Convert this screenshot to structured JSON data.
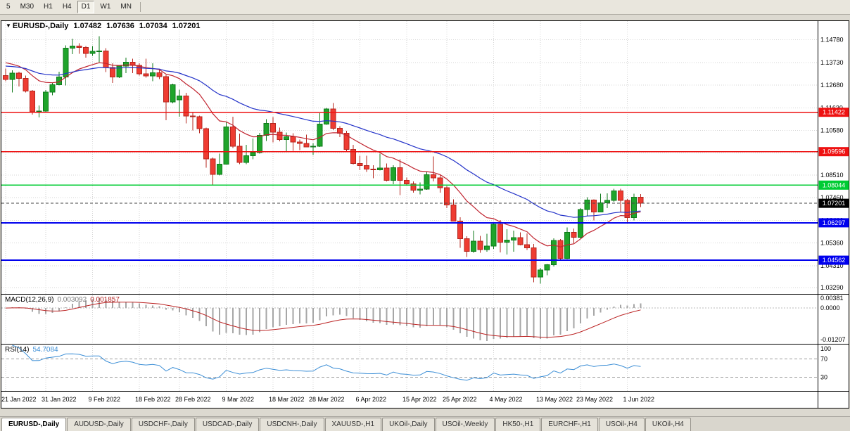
{
  "toolbar": {
    "timeframes": [
      {
        "label": "5",
        "active": false
      },
      {
        "label": "M30",
        "active": false
      },
      {
        "label": "H1",
        "active": false
      },
      {
        "label": "H4",
        "active": false
      },
      {
        "label": "D1",
        "active": true
      },
      {
        "label": "W1",
        "active": false
      },
      {
        "label": "MN",
        "active": false
      }
    ]
  },
  "chart_header": {
    "symbol": "EURUSD-,Daily",
    "open": "1.07482",
    "high": "1.07636",
    "low": "1.07034",
    "close": "1.07201"
  },
  "indicators": {
    "macd": {
      "name": "MACD(12,26,9)",
      "main_value": "0.003092",
      "signal_value": "0.001857",
      "axis": {
        "max": "0.00381",
        "zero": "0.0000",
        "min": "-0.01207"
      }
    },
    "rsi": {
      "name": "RSI(14)",
      "value": "54.7084",
      "axis": [
        "100",
        "70",
        "30"
      ],
      "levels": [
        70,
        30
      ]
    }
  },
  "price_axis": {
    "ticks": [
      "1.14780",
      "1.13730",
      "1.12680",
      "1.11630",
      "1.10580",
      "1.09530",
      "1.08510",
      "1.07460",
      "1.06410",
      "1.05360",
      "1.04310",
      "1.03290"
    ]
  },
  "chart_data": {
    "type": "candlestick",
    "symbol": "EURUSD-",
    "timeframe": "Daily",
    "title": "EURUSD-,Daily 1.07482 1.07636 1.07034 1.07201",
    "ylim": [
      1.03,
      1.1565
    ],
    "grid": true,
    "candle_colors": {
      "up": "#1fa42b",
      "up_border": "#0e7a1a",
      "down": "#ef3c32",
      "down_border": "#b4251d"
    },
    "overlays": [
      {
        "name": "ma-fast",
        "type": "ema",
        "period": 13,
        "seed": 1.1385,
        "color": "#c0242f"
      },
      {
        "name": "ma-slow",
        "type": "ema",
        "period": 34,
        "seed": 1.136,
        "color": "#2433c9"
      }
    ],
    "hlines": [
      {
        "price": 1.11422,
        "label": "1.11422",
        "color": "#ee1111",
        "width": 1.3
      },
      {
        "price": 1.09596,
        "label": "1.09596",
        "color": "#ee1111",
        "width": 1.3
      },
      {
        "price": 1.08044,
        "label": "1.08044",
        "color": "#00cc33",
        "width": 1.8
      },
      {
        "price": 1.06297,
        "label": "1.06297",
        "color": "#0000ee",
        "width": 1.8
      },
      {
        "price": 1.04562,
        "label": "1.04562",
        "color": "#0000ee",
        "width": 1.8
      }
    ],
    "current_price": {
      "value": 1.07201,
      "label": "1.07201",
      "badge_color": "#000000"
    },
    "macd_colors": {
      "histogram": "#a6a6a6",
      "signal": "#bb2222",
      "zero_line": "#bbbbbb"
    },
    "rsi_color": "#3b8ed6",
    "date_ticks": [
      {
        "index": 0,
        "label": "21 Jan 2022"
      },
      {
        "index": 6,
        "label": "31 Jan 2022"
      },
      {
        "index": 13,
        "label": "9 Feb 2022"
      },
      {
        "index": 20,
        "label": "18 Feb 2022"
      },
      {
        "index": 26,
        "label": "28 Feb 2022"
      },
      {
        "index": 33,
        "label": "9 Mar 2022"
      },
      {
        "index": 40,
        "label": "18 Mar 2022"
      },
      {
        "index": 46,
        "label": "28 Mar 2022"
      },
      {
        "index": 53,
        "label": "6 Apr 2022"
      },
      {
        "index": 60,
        "label": "15 Apr 2022"
      },
      {
        "index": 66,
        "label": "25 Apr 2022"
      },
      {
        "index": 73,
        "label": "4 May 2022"
      },
      {
        "index": 80,
        "label": "13 May 2022"
      },
      {
        "index": 86,
        "label": "23 May 2022"
      },
      {
        "index": 93,
        "label": "1 Jun 2022"
      }
    ],
    "candles": [
      [
        "2022-01-21",
        1.1312,
        1.1345,
        1.1286,
        1.1294
      ],
      [
        "2022-01-24",
        1.1294,
        1.1336,
        1.1234,
        1.1324
      ],
      [
        "2022-01-25",
        1.1324,
        1.133,
        1.1262,
        1.13
      ],
      [
        "2022-01-26",
        1.13,
        1.1312,
        1.1234,
        1.124
      ],
      [
        "2022-01-27",
        1.124,
        1.1246,
        1.1131,
        1.1145
      ],
      [
        "2022-01-28",
        1.1145,
        1.1174,
        1.1119,
        1.1148
      ],
      [
        "2022-01-31",
        1.1148,
        1.1246,
        1.114,
        1.1235
      ],
      [
        "2022-02-01",
        1.1235,
        1.128,
        1.1221,
        1.127
      ],
      [
        "2022-02-02",
        1.127,
        1.1331,
        1.1266,
        1.1306
      ],
      [
        "2022-02-03",
        1.1306,
        1.1452,
        1.1267,
        1.144
      ],
      [
        "2022-02-04",
        1.144,
        1.1484,
        1.1411,
        1.145
      ],
      [
        "2022-02-07",
        1.145,
        1.1462,
        1.1414,
        1.1442
      ],
      [
        "2022-02-08",
        1.1442,
        1.145,
        1.1396,
        1.1415
      ],
      [
        "2022-02-09",
        1.1415,
        1.1449,
        1.1403,
        1.1424
      ],
      [
        "2022-02-10",
        1.1424,
        1.1495,
        1.1375,
        1.1426
      ],
      [
        "2022-02-11",
        1.1426,
        1.144,
        1.1329,
        1.135
      ],
      [
        "2022-02-14",
        1.135,
        1.1369,
        1.1278,
        1.1305
      ],
      [
        "2022-02-15",
        1.1305,
        1.1361,
        1.1301,
        1.1356
      ],
      [
        "2022-02-16",
        1.1356,
        1.1396,
        1.1324,
        1.1375
      ],
      [
        "2022-02-17",
        1.1375,
        1.1391,
        1.1323,
        1.136
      ],
      [
        "2022-02-18",
        1.136,
        1.137,
        1.1312,
        1.1321
      ],
      [
        "2022-02-21",
        1.1321,
        1.1391,
        1.1302,
        1.1311
      ],
      [
        "2022-02-22",
        1.1311,
        1.1369,
        1.1287,
        1.1325
      ],
      [
        "2022-02-23",
        1.1325,
        1.1343,
        1.1296,
        1.1307
      ],
      [
        "2022-02-24",
        1.1307,
        1.1316,
        1.1106,
        1.119
      ],
      [
        "2022-02-25",
        1.119,
        1.1275,
        1.1184,
        1.127
      ],
      [
        "2022-02-28",
        1.12,
        1.1247,
        1.1121,
        1.1218
      ],
      [
        "2022-03-01",
        1.1218,
        1.1233,
        1.109,
        1.1125
      ],
      [
        "2022-03-02",
        1.1125,
        1.114,
        1.1058,
        1.1122
      ],
      [
        "2022-03-03",
        1.1122,
        1.1126,
        1.1045,
        1.1066
      ],
      [
        "2022-03-04",
        1.1066,
        1.1071,
        1.0885,
        1.0926
      ],
      [
        "2022-03-07",
        1.0926,
        1.0932,
        1.0806,
        1.0854
      ],
      [
        "2022-03-08",
        1.0854,
        1.0951,
        1.0849,
        1.0901
      ],
      [
        "2022-03-09",
        1.0901,
        1.1096,
        1.09,
        1.1075
      ],
      [
        "2022-03-10",
        1.1075,
        1.1122,
        1.0977,
        1.0985
      ],
      [
        "2022-03-11",
        1.0985,
        1.1044,
        1.0901,
        1.091
      ],
      [
        "2022-03-14",
        1.091,
        1.0991,
        1.0902,
        1.094
      ],
      [
        "2022-03-15",
        1.094,
        1.1021,
        1.0925,
        1.0955
      ],
      [
        "2022-03-16",
        1.0955,
        1.1047,
        1.095,
        1.1035
      ],
      [
        "2022-03-17",
        1.1035,
        1.111,
        1.1009,
        1.109
      ],
      [
        "2022-03-18",
        1.109,
        1.112,
        1.1003,
        1.105
      ],
      [
        "2022-03-21",
        1.105,
        1.1071,
        1.1008,
        1.1015
      ],
      [
        "2022-03-22",
        1.1015,
        1.1048,
        1.0962,
        1.1028
      ],
      [
        "2022-03-23",
        1.1028,
        1.1045,
        1.0963,
        1.1005
      ],
      [
        "2022-03-24",
        1.1005,
        1.1015,
        1.0966,
        1.0997
      ],
      [
        "2022-03-25",
        1.0997,
        1.1039,
        1.098,
        1.0982
      ],
      [
        "2022-03-28",
        1.0982,
        1.1,
        1.0944,
        1.0985
      ],
      [
        "2022-03-29",
        1.0985,
        1.1138,
        1.0982,
        1.1087
      ],
      [
        "2022-03-30",
        1.1087,
        1.1163,
        1.1084,
        1.1158
      ],
      [
        "2022-03-31",
        1.1158,
        1.1185,
        1.106,
        1.1067
      ],
      [
        "2022-04-01",
        1.1067,
        1.1078,
        1.1027,
        1.1045
      ],
      [
        "2022-04-04",
        1.1045,
        1.1056,
        1.096,
        1.097
      ],
      [
        "2022-04-05",
        1.097,
        1.0992,
        1.09,
        1.0905
      ],
      [
        "2022-04-06",
        1.0905,
        1.094,
        1.0874,
        1.0895
      ],
      [
        "2022-04-07",
        1.0895,
        1.094,
        1.0865,
        1.0878
      ],
      [
        "2022-04-08",
        1.0878,
        1.0896,
        1.0837,
        1.0876
      ],
      [
        "2022-04-11",
        1.0876,
        1.0951,
        1.0872,
        1.0883
      ],
      [
        "2022-04-12",
        1.0883,
        1.0905,
        1.0821,
        1.0827
      ],
      [
        "2022-04-13",
        1.0827,
        1.0896,
        1.0809,
        1.0886
      ],
      [
        "2022-04-14",
        1.0886,
        1.0925,
        1.0758,
        1.0827
      ],
      [
        "2022-04-15",
        1.0827,
        1.0839,
        1.0802,
        1.0811
      ],
      [
        "2022-04-18",
        1.0811,
        1.0822,
        1.077,
        1.0781
      ],
      [
        "2022-04-19",
        1.0781,
        1.0816,
        1.0761,
        1.0786
      ],
      [
        "2022-04-20",
        1.0786,
        1.0868,
        1.0782,
        1.0853
      ],
      [
        "2022-04-21",
        1.0853,
        1.0937,
        1.0822,
        1.0838
      ],
      [
        "2022-04-22",
        1.0838,
        1.0853,
        1.077,
        1.0793
      ],
      [
        "2022-04-25",
        1.0793,
        1.0801,
        1.0697,
        1.0713
      ],
      [
        "2022-04-26",
        1.0713,
        1.0739,
        1.0635,
        1.0637
      ],
      [
        "2022-04-27",
        1.0637,
        1.0656,
        1.0514,
        1.0556
      ],
      [
        "2022-04-28",
        1.0556,
        1.0568,
        1.0471,
        1.0497
      ],
      [
        "2022-04-29",
        1.0497,
        1.0594,
        1.049,
        1.0545
      ],
      [
        "2022-05-02",
        1.0545,
        1.0569,
        1.049,
        1.0505
      ],
      [
        "2022-05-03",
        1.0505,
        1.0579,
        1.0495,
        1.0521
      ],
      [
        "2022-05-04",
        1.0521,
        1.0633,
        1.0509,
        1.0622
      ],
      [
        "2022-05-05",
        1.0622,
        1.0642,
        1.0492,
        1.054
      ],
      [
        "2022-05-06",
        1.054,
        1.06,
        1.0483,
        1.055
      ],
      [
        "2022-05-09",
        1.055,
        1.0594,
        1.0495,
        1.0561
      ],
      [
        "2022-05-10",
        1.0561,
        1.0586,
        1.0525,
        1.0528
      ],
      [
        "2022-05-11",
        1.0528,
        1.058,
        1.0503,
        1.0514
      ],
      [
        "2022-05-12",
        1.0514,
        1.0531,
        1.0354,
        1.0379
      ],
      [
        "2022-05-13",
        1.0379,
        1.042,
        1.0348,
        1.0411
      ],
      [
        "2022-05-16",
        1.0411,
        1.0438,
        1.0386,
        1.0435
      ],
      [
        "2022-05-17",
        1.0435,
        1.0557,
        1.0427,
        1.0547
      ],
      [
        "2022-05-18",
        1.0547,
        1.0554,
        1.0459,
        1.0465
      ],
      [
        "2022-05-19",
        1.0465,
        1.0608,
        1.0462,
        1.0585
      ],
      [
        "2022-05-20",
        1.0585,
        1.0604,
        1.0535,
        1.0563
      ],
      [
        "2022-05-23",
        1.0563,
        1.0697,
        1.0557,
        1.0691
      ],
      [
        "2022-05-24",
        1.0691,
        1.0748,
        1.0661,
        1.0735
      ],
      [
        "2022-05-25",
        1.0735,
        1.0739,
        1.0641,
        1.068
      ],
      [
        "2022-05-26",
        1.068,
        1.0765,
        1.0678,
        1.0723
      ],
      [
        "2022-05-27",
        1.0723,
        1.0766,
        1.0697,
        1.0733
      ],
      [
        "2022-05-30",
        1.0733,
        1.0787,
        1.0727,
        1.0777
      ],
      [
        "2022-05-31",
        1.0777,
        1.0788,
        1.0678,
        1.0734
      ],
      [
        "2022-06-01",
        1.0734,
        1.074,
        1.0627,
        1.0653
      ],
      [
        "2022-06-02",
        1.0653,
        1.0764,
        1.0641,
        1.0748
      ],
      [
        "2022-06-03",
        1.07482,
        1.07636,
        1.07034,
        1.07201
      ]
    ]
  },
  "tabs": [
    {
      "label": "EURUSD-,Daily",
      "active": true
    },
    {
      "label": "AUDUSD-,Daily",
      "active": false
    },
    {
      "label": "USDCHF-,Daily",
      "active": false
    },
    {
      "label": "USDCAD-,Daily",
      "active": false
    },
    {
      "label": "USDCNH-,Daily",
      "active": false
    },
    {
      "label": "XAUUSD-,H1",
      "active": false
    },
    {
      "label": "UKOil-,Daily",
      "active": false
    },
    {
      "label": "USOil-,Weekly",
      "active": false
    },
    {
      "label": "HK50-,H1",
      "active": false
    },
    {
      "label": "EURCHF-,H1",
      "active": false
    },
    {
      "label": "USOil-,H4",
      "active": false
    },
    {
      "label": "UKOil-,H4",
      "active": false
    }
  ]
}
